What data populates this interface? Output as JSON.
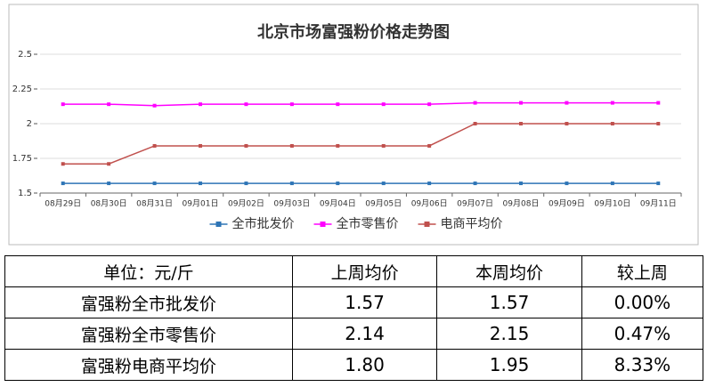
{
  "chart_data": {
    "type": "line",
    "title": "北京市场富强粉价格走势图",
    "categories": [
      "08月29日",
      "08月30日",
      "08月31日",
      "09月01日",
      "09月02日",
      "09月03日",
      "09月04日",
      "09月05日",
      "09月06日",
      "09月07日",
      "09月08日",
      "09月09日",
      "09月10日",
      "09月11日"
    ],
    "series": [
      {
        "name": "全市批发价",
        "color": "#2e75b6",
        "values": [
          1.57,
          1.57,
          1.57,
          1.57,
          1.57,
          1.57,
          1.57,
          1.57,
          1.57,
          1.57,
          1.57,
          1.57,
          1.57,
          1.57
        ]
      },
      {
        "name": "全市零售价",
        "color": "#ff00ff",
        "values": [
          2.14,
          2.14,
          2.13,
          2.14,
          2.14,
          2.14,
          2.14,
          2.14,
          2.14,
          2.15,
          2.15,
          2.15,
          2.15,
          2.15
        ]
      },
      {
        "name": "电商平均价",
        "color": "#c0504d",
        "values": [
          1.71,
          1.71,
          1.84,
          1.84,
          1.84,
          1.84,
          1.84,
          1.84,
          1.84,
          2.0,
          2.0,
          2.0,
          2.0,
          2.0
        ]
      }
    ],
    "ylim": [
      1.5,
      2.5
    ],
    "yticks": [
      1.5,
      1.75,
      2,
      2.25,
      2.5
    ],
    "grid": true,
    "legend": "bottom"
  },
  "table": {
    "header": [
      "单位：元/斤",
      "上周均价",
      "本周均价",
      "较上周"
    ],
    "rows": [
      [
        "富强粉全市批发价",
        "1.57",
        "1.57",
        "0.00%"
      ],
      [
        "富强粉全市零售价",
        "2.14",
        "2.15",
        "0.47%"
      ],
      [
        "富强粉电商平均价",
        "1.80",
        "1.95",
        "8.33%"
      ]
    ]
  }
}
